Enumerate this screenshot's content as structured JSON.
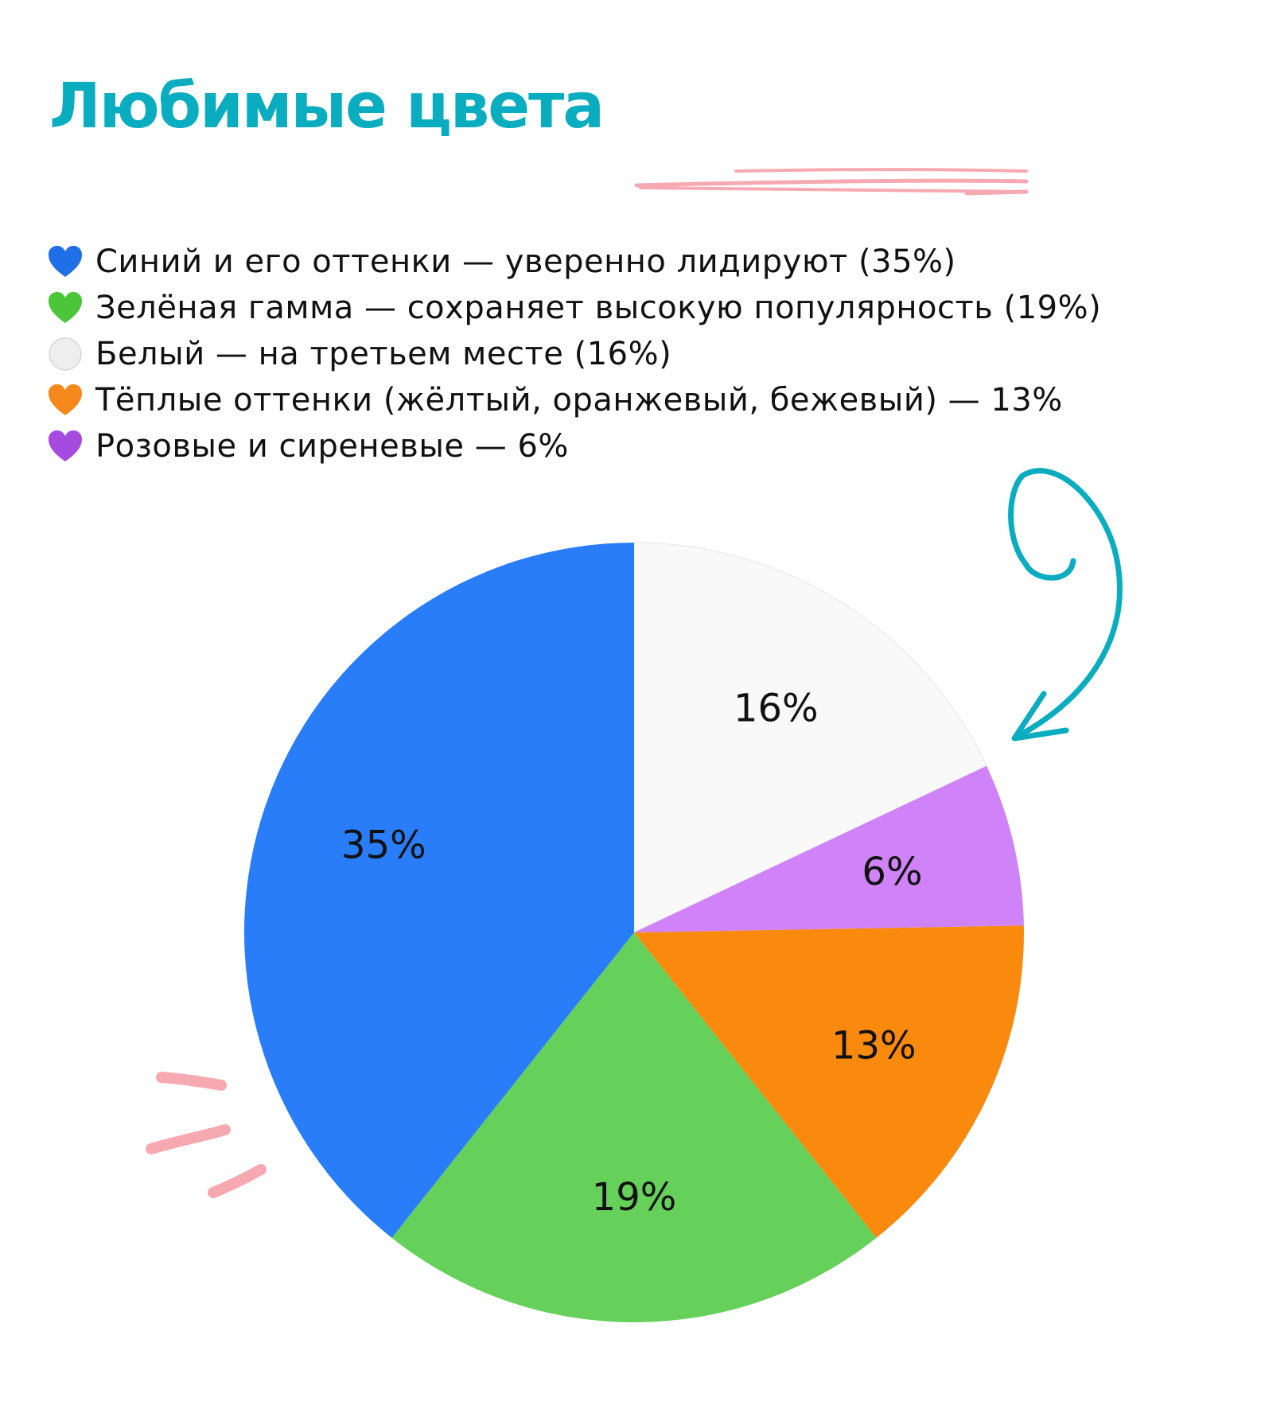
{
  "title": "Любимые цвета",
  "colors": {
    "title": "#0AADC0",
    "accent_teal": "#0AADC0",
    "accent_pink": "#F7A9B2",
    "white_slice_border": "#E5E5E5"
  },
  "legend": [
    {
      "icon": "blue-heart-icon",
      "color": "#1F6FE8",
      "shape": "heart",
      "text": "Синий и его оттенки — уверенно лидируют (35%)"
    },
    {
      "icon": "green-heart-icon",
      "color": "#4CC53A",
      "shape": "heart",
      "text": "Зелёная гамма — сохраняет высокую популярность (19%)"
    },
    {
      "icon": "white-circle-icon",
      "color": "#EEEEEE",
      "shape": "circle",
      "text": "Белый — на третьем месте (16%)"
    },
    {
      "icon": "orange-heart-icon",
      "color": "#F5891E",
      "shape": "heart",
      "text": "Тёплые оттенки (жёлтый, оранжевый, бежевый) — 13%"
    },
    {
      "icon": "purple-heart-icon",
      "color": "#A64BE0",
      "shape": "heart",
      "text": "Розовые и сиреневые — 6%"
    }
  ],
  "chart_data": {
    "type": "pie",
    "title": "",
    "start": "12 o'clock",
    "direction": "clockwise",
    "slices": [
      {
        "key": "white",
        "value": 16,
        "label": "16%",
        "color": "#F9F9F9"
      },
      {
        "key": "pink-lilac",
        "value": 6,
        "label": "6%",
        "color": "#D083F8"
      },
      {
        "key": "warm",
        "value": 13,
        "label": "13%",
        "color": "#F98A0E"
      },
      {
        "key": "green",
        "value": 19,
        "label": "19%",
        "color": "#65D15A"
      },
      {
        "key": "blue",
        "value": 35,
        "label": "35%",
        "color": "#2A7DF8"
      }
    ]
  }
}
